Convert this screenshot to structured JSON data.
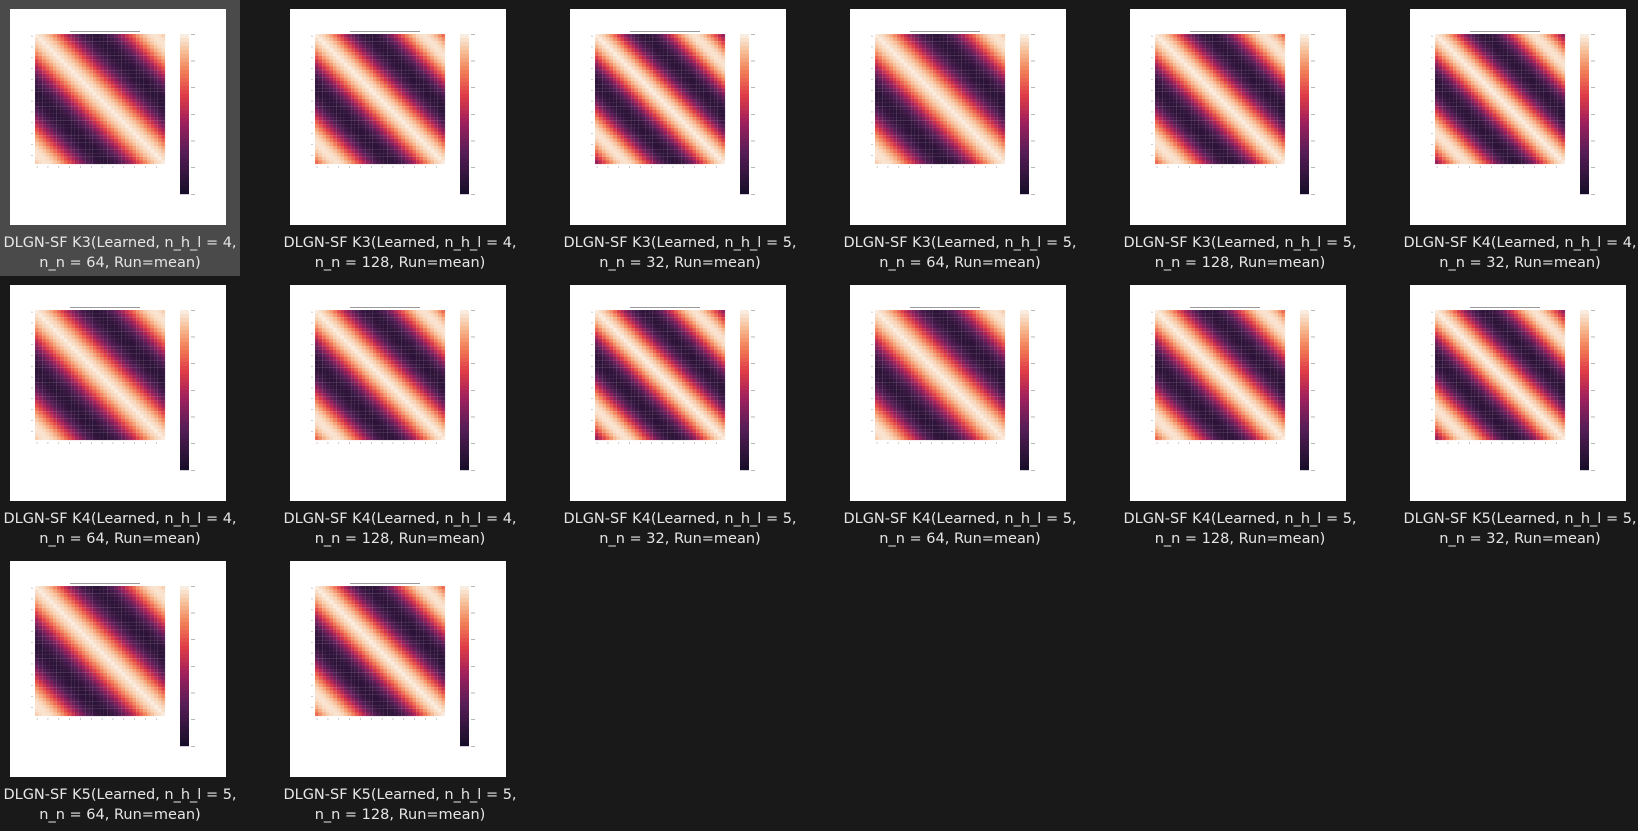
{
  "colors": {
    "background": "#191919",
    "selected_tile": "#4a4a4a",
    "caption_text": "#e6e6e6",
    "thumbnail_bg": "#ffffff"
  },
  "files": [
    {
      "line1": "DLGN-SF K3(Learned, n_h_l = 4,",
      "line2": "n_n = 64, Run=mean)",
      "selected": true
    },
    {
      "line1": "DLGN-SF K3(Learned, n_h_l = 4,",
      "line2": "n_n = 128, Run=mean)"
    },
    {
      "line1": "DLGN-SF K3(Learned, n_h_l = 5,",
      "line2": "n_n = 32, Run=mean)"
    },
    {
      "line1": "DLGN-SF K3(Learned, n_h_l = 5,",
      "line2": "n_n = 64, Run=mean)"
    },
    {
      "line1": "DLGN-SF K3(Learned, n_h_l = 5,",
      "line2": "n_n = 128, Run=mean)"
    },
    {
      "line1": "DLGN-SF K4(Learned, n_h_l = 4,",
      "line2": "n_n = 32, Run=mean)"
    },
    {
      "line1": "DLGN-SF K4(Learned, n_h_l = 4,",
      "line2": "n_n = 64, Run=mean)"
    },
    {
      "line1": "DLGN-SF K4(Learned, n_h_l = 4,",
      "line2": "n_n = 128, Run=mean)"
    },
    {
      "line1": "DLGN-SF K4(Learned, n_h_l = 5,",
      "line2": "n_n = 32, Run=mean)"
    },
    {
      "line1": "DLGN-SF K4(Learned, n_h_l = 5,",
      "line2": "n_n = 64, Run=mean)"
    },
    {
      "line1": "DLGN-SF K4(Learned, n_h_l = 5,",
      "line2": "n_n = 128, Run=mean)"
    },
    {
      "line1": "DLGN-SF K5(Learned, n_h_l = 5,",
      "line2": "n_n = 32, Run=mean)"
    },
    {
      "line1": "DLGN-SF K5(Learned, n_h_l = 5,",
      "line2": "n_n = 64, Run=mean)"
    },
    {
      "line1": "DLGN-SF K5(Learned, n_h_l = 5,",
      "line2": "n_n = 128, Run=mean)"
    }
  ]
}
